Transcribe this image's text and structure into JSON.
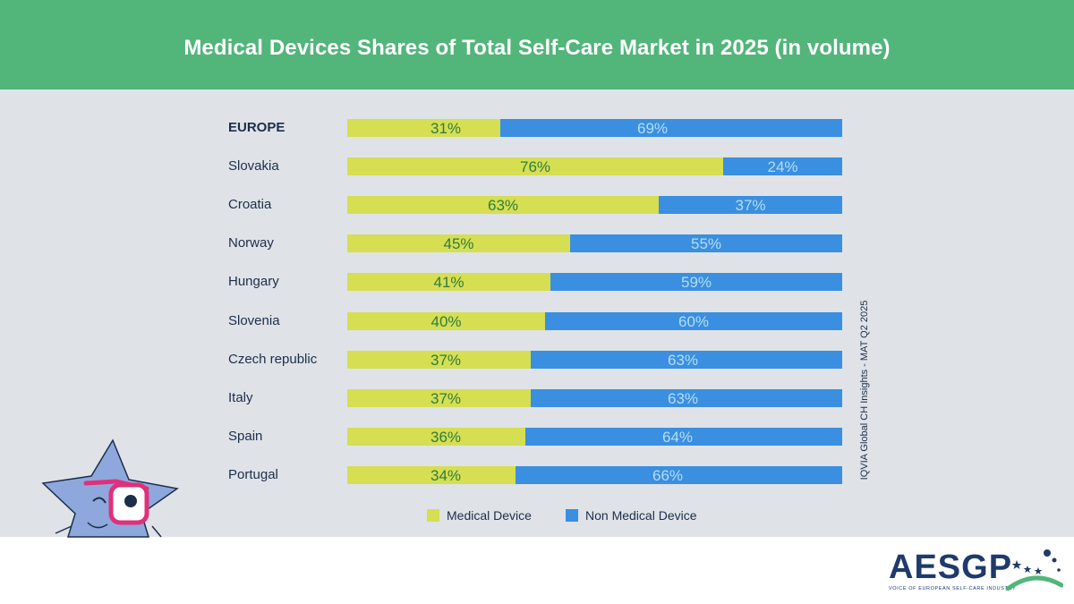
{
  "header": {
    "title": "Medical Devices Shares of Total Self-Care Market in 2025 (in volume)"
  },
  "chart_data": {
    "type": "bar",
    "orientation": "horizontal",
    "stacked": true,
    "normalized_percent": true,
    "categories": [
      "EUROPE",
      "Slovakia",
      "Croatia",
      "Norway",
      "Hungary",
      "Slovenia",
      "Czech republic",
      "Italy",
      "Spain",
      "Portugal"
    ],
    "bold_categories": [
      "EUROPE"
    ],
    "series": [
      {
        "name": "Medical Device",
        "color": "#d6de52",
        "values": [
          31,
          76,
          63,
          45,
          41,
          40,
          37,
          37,
          36,
          34
        ],
        "labels": [
          "31%",
          "76%",
          "63%",
          "45%",
          "41%",
          "40%",
          "37%",
          "37%",
          "36%",
          "34%"
        ]
      },
      {
        "name": "Non Medical Device",
        "color": "#3a8fe0",
        "values": [
          69,
          24,
          37,
          55,
          59,
          60,
          63,
          63,
          64,
          66
        ],
        "labels": [
          "69%",
          "24%",
          "37%",
          "55%",
          "59%",
          "60%",
          "63%",
          "63%",
          "64%",
          "66%"
        ]
      }
    ],
    "legend_position": "bottom",
    "grid": false
  },
  "source_note": "IQVIA Global CH Insights - MAT Q2 2025",
  "logo": {
    "name": "AESGP",
    "tagline": "VOICE OF EUROPEAN SELF-CARE INDUSTRY"
  },
  "colors": {
    "header": "#52b57a",
    "panel": "#dfe3e8",
    "medical_device": "#d6de52",
    "non_medical_device": "#3a8fe0"
  },
  "icons": [
    "star-mascot-icon",
    "aesgp-stars-logo-icon"
  ]
}
